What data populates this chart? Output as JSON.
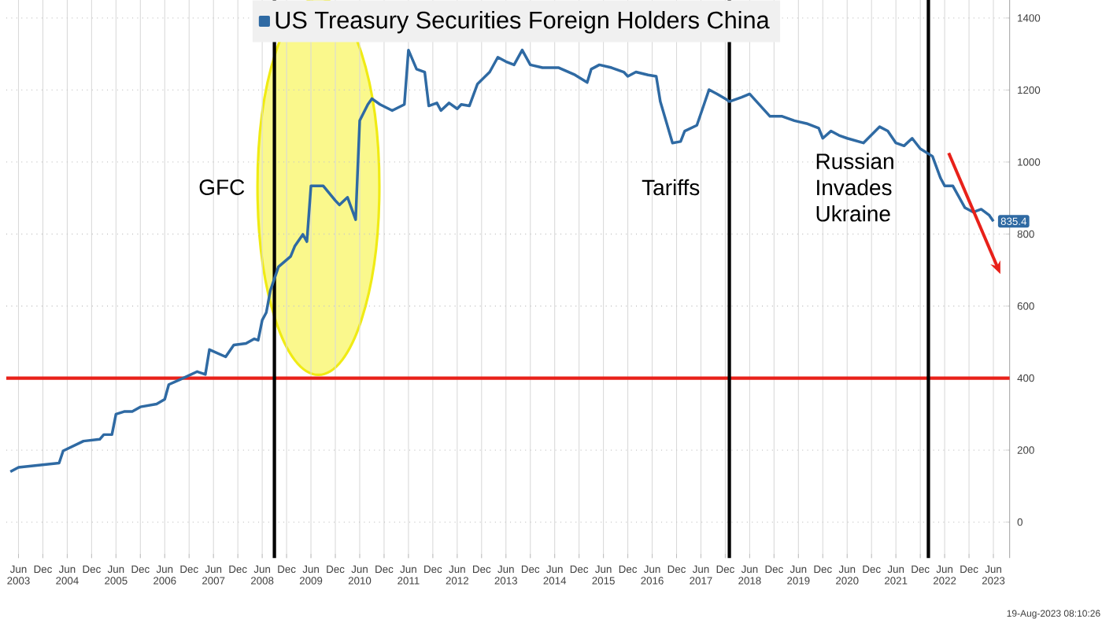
{
  "chart_data": {
    "type": "line",
    "x": [
      "2003-04",
      "2003-06",
      "2004-04",
      "2004-05",
      "2004-10",
      "2005-02",
      "2005-03",
      "2005-05",
      "2005-06",
      "2005-08",
      "2005-10",
      "2005-12",
      "2006-04",
      "2006-06",
      "2006-07",
      "2006-10",
      "2007-02",
      "2007-04",
      "2007-05",
      "2007-09",
      "2007-11",
      "2008-02",
      "2008-04",
      "2008-05",
      "2008-06",
      "2008-07",
      "2008-08",
      "2008-10",
      "2009-01",
      "2009-02",
      "2009-04",
      "2009-05",
      "2009-06",
      "2009-09",
      "2009-12",
      "2010-01",
      "2010-03",
      "2010-05",
      "2010-06",
      "2010-08",
      "2010-09",
      "2010-11",
      "2011-02",
      "2011-05",
      "2011-06",
      "2011-08",
      "2011-10",
      "2011-11",
      "2012-01",
      "2012-02",
      "2012-04",
      "2012-06",
      "2012-07",
      "2012-09",
      "2012-11",
      "2013-02",
      "2013-04",
      "2013-06",
      "2013-08",
      "2013-10",
      "2013-12",
      "2014-03",
      "2014-07",
      "2014-11",
      "2015-02",
      "2015-03",
      "2015-05",
      "2015-08",
      "2015-11",
      "2015-12",
      "2016-02",
      "2016-05",
      "2016-07",
      "2016-08",
      "2016-11",
      "2017-01",
      "2017-02",
      "2017-05",
      "2017-08",
      "2017-10",
      "2017-12",
      "2018-01",
      "2018-04",
      "2018-06",
      "2018-11",
      "2019-02",
      "2019-05",
      "2019-08",
      "2019-11",
      "2019-12",
      "2020-02",
      "2020-04",
      "2020-06",
      "2020-10",
      "2021-02",
      "2021-04",
      "2021-06",
      "2021-08",
      "2021-10",
      "2021-12",
      "2022-03",
      "2022-05",
      "2022-06",
      "2022-08",
      "2022-11",
      "2023-01",
      "2023-03",
      "2023-05",
      "2023-06"
    ],
    "series": [
      {
        "name": "US Treasury Securities Foreign Holders China",
        "color": "#2f6aa3",
        "values": [
          140,
          152,
          164,
          198,
          225,
          230,
          243,
          243,
          300,
          307,
          307,
          320,
          328,
          341,
          382,
          397,
          418,
          410,
          479,
          459,
          492,
          496,
          509,
          505,
          561,
          582,
          643,
          709,
          738,
          766,
          799,
          779,
          934,
          934,
          893,
          881,
          902,
          840,
          1115,
          1160,
          1176,
          1160,
          1143,
          1160,
          1311,
          1258,
          1250,
          1156,
          1164,
          1143,
          1164,
          1148,
          1160,
          1156,
          1217,
          1250,
          1291,
          1279,
          1270,
          1311,
          1270,
          1262,
          1262,
          1242,
          1221,
          1258,
          1270,
          1262,
          1250,
          1238,
          1250,
          1242,
          1238,
          1168,
          1053,
          1057,
          1086,
          1102,
          1201,
          1189,
          1176,
          1168,
          1180,
          1189,
          1127,
          1127,
          1115,
          1107,
          1094,
          1066,
          1086,
          1074,
          1066,
          1053,
          1098,
          1086,
          1053,
          1045,
          1066,
          1037,
          1016,
          955,
          934,
          934,
          873,
          861,
          869,
          852,
          835.4
        ]
      }
    ],
    "xlim": [
      "2003-03",
      "2023-10"
    ],
    "xticks": [
      {
        "value": "2003-06",
        "label": "Jun 2003"
      },
      {
        "value": "2003-12",
        "label": "Dec"
      },
      {
        "value": "2004-06",
        "label": "Jun 2004"
      },
      {
        "value": "2004-12",
        "label": "Dec"
      },
      {
        "value": "2005-06",
        "label": "Jun 2005"
      },
      {
        "value": "2005-12",
        "label": "Dec"
      },
      {
        "value": "2006-06",
        "label": "Jun 2006"
      },
      {
        "value": "2006-12",
        "label": "Dec"
      },
      {
        "value": "2007-06",
        "label": "Jun 2007"
      },
      {
        "value": "2007-12",
        "label": "Dec"
      },
      {
        "value": "2008-06",
        "label": "Jun 2008"
      },
      {
        "value": "2008-12",
        "label": "Dec"
      },
      {
        "value": "2009-06",
        "label": "Jun 2009"
      },
      {
        "value": "2009-12",
        "label": "Dec"
      },
      {
        "value": "2010-06",
        "label": "Jun 2010"
      },
      {
        "value": "2010-12",
        "label": "Dec"
      },
      {
        "value": "2011-06",
        "label": "Jun 2011"
      },
      {
        "value": "2011-12",
        "label": "Dec"
      },
      {
        "value": "2012-06",
        "label": "Jun 2012"
      },
      {
        "value": "2012-12",
        "label": "Dec"
      },
      {
        "value": "2013-06",
        "label": "Jun 2013"
      },
      {
        "value": "2013-12",
        "label": "Dec"
      },
      {
        "value": "2014-06",
        "label": "Jun 2014"
      },
      {
        "value": "2014-12",
        "label": "Dec"
      },
      {
        "value": "2015-06",
        "label": "Jun 2015"
      },
      {
        "value": "2015-12",
        "label": "Dec"
      },
      {
        "value": "2016-06",
        "label": "Jun 2016"
      },
      {
        "value": "2016-12",
        "label": "Dec"
      },
      {
        "value": "2017-06",
        "label": "Jun 2017"
      },
      {
        "value": "2017-12",
        "label": "Dec"
      },
      {
        "value": "2018-06",
        "label": "Jun 2018"
      },
      {
        "value": "2018-12",
        "label": "Dec"
      },
      {
        "value": "2019-06",
        "label": "Jun 2019"
      },
      {
        "value": "2019-12",
        "label": "Dec"
      },
      {
        "value": "2020-06",
        "label": "Jun 2020"
      },
      {
        "value": "2020-12",
        "label": "Dec"
      },
      {
        "value": "2021-06",
        "label": "Jun 2021"
      },
      {
        "value": "2021-12",
        "label": "Dec"
      },
      {
        "value": "2022-06",
        "label": "Jun 2022"
      },
      {
        "value": "2022-12",
        "label": "Dec"
      },
      {
        "value": "2023-06",
        "label": "Jun 2023"
      }
    ],
    "ylim": [
      -100,
      1450
    ],
    "yticks": [
      0,
      200,
      400,
      600,
      800,
      1000,
      1200,
      1400
    ],
    "grid": true,
    "legend": "top",
    "ref_lines": [
      {
        "axis": "y",
        "value": 400,
        "color": "#e8211a"
      },
      {
        "axis": "x",
        "value": "2008-09",
        "label": "GFC",
        "color": "#000000"
      },
      {
        "axis": "x",
        "value": "2018-01",
        "label": "Tariffs",
        "color": "#000000"
      },
      {
        "axis": "x",
        "value": "2022-02",
        "label": "Russian Invades Ukraine",
        "color": "#000000"
      }
    ],
    "annotations": [
      {
        "text": "835.4",
        "x": "2023-06",
        "y": 835.4
      },
      "19-Aug-2023 08:10:26"
    ]
  }
}
